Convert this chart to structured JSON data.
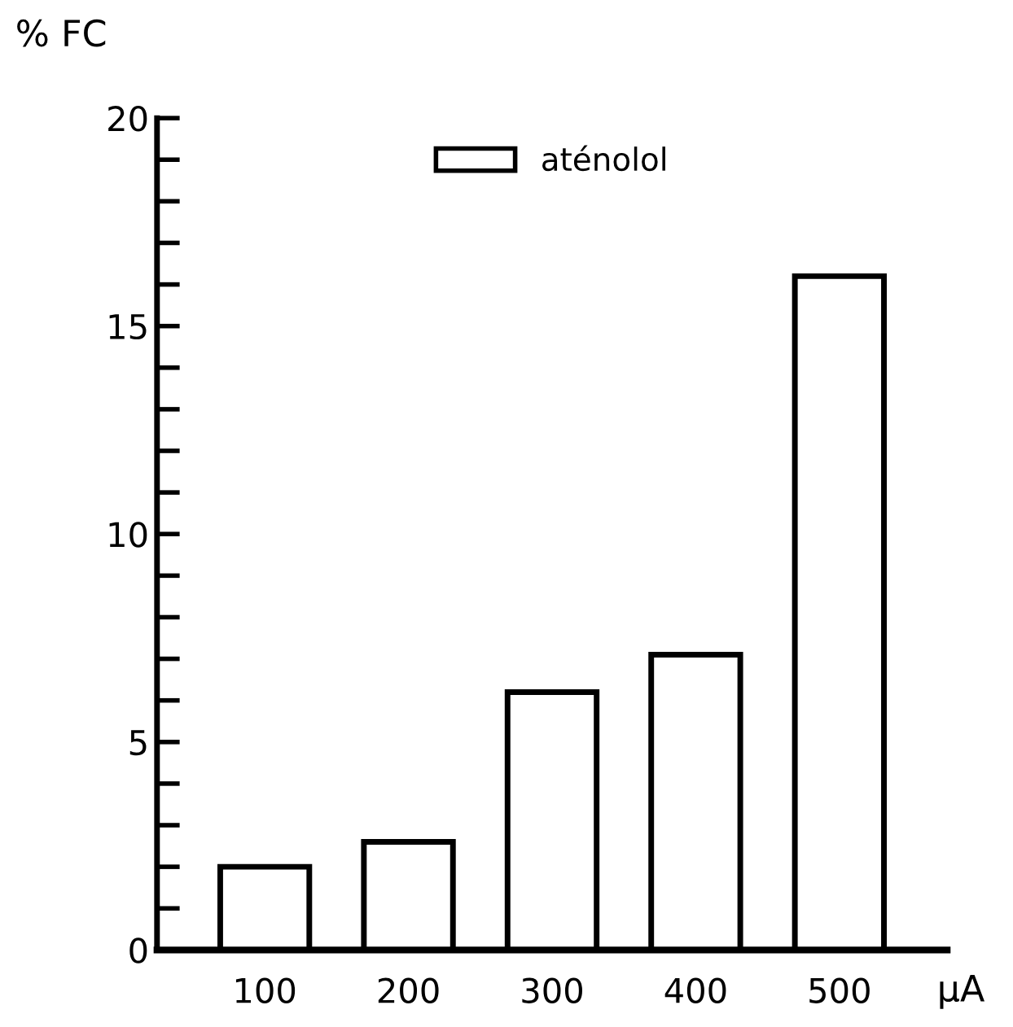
{
  "chart_data": {
    "type": "bar",
    "ylabel": "% FC",
    "xlabel": "µA",
    "categories": [
      "100",
      "200",
      "300",
      "400",
      "500"
    ],
    "series": [
      {
        "name": "aténolol",
        "color": "#ffffff",
        "values": [
          2.0,
          2.6,
          6.2,
          7.1,
          16.2
        ]
      }
    ],
    "ylim": [
      0,
      20
    ],
    "yticks": [
      0,
      {
        "value": 1,
        "label": null
      },
      {
        "value": 2,
        "label": null
      },
      {
        "value": 3,
        "label": null
      },
      {
        "value": 4,
        "label": null
      },
      5,
      {
        "value": 6,
        "label": null
      },
      {
        "value": 7,
        "label": null
      },
      {
        "value": 8,
        "label": null
      },
      {
        "value": 9,
        "label": null
      },
      10,
      {
        "value": 11,
        "label": null
      },
      {
        "value": 12,
        "label": null
      },
      {
        "value": 13,
        "label": null
      },
      {
        "value": 14,
        "label": null
      },
      15,
      {
        "value": 16,
        "label": null
      },
      {
        "value": 17,
        "label": null
      },
      {
        "value": 18,
        "label": null
      },
      {
        "value": 19,
        "label": null
      },
      20
    ],
    "legend": "top",
    "grid": false
  }
}
